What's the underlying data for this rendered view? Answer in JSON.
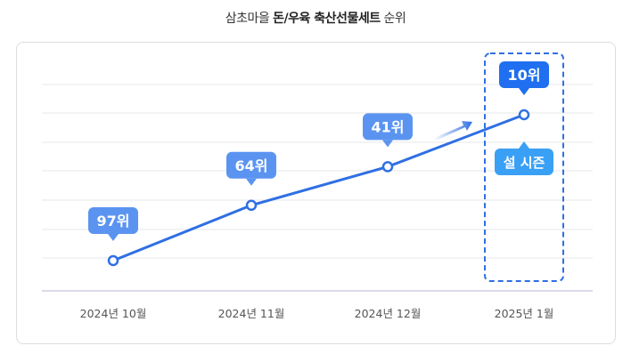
{
  "title": {
    "prefix": "삼초마을 ",
    "bold": "돈/우육 축산선물세트",
    "suffix": " 순위"
  },
  "chart_data": {
    "type": "line",
    "title": "삼초마을 돈/우육 축산선물세트 순위",
    "categories": [
      "2024년 10월",
      "2024년 11월",
      "2024년 12월",
      "2025년 1월"
    ],
    "values": [
      97,
      64,
      41,
      10
    ],
    "data_labels": [
      "97위",
      "64위",
      "41위",
      "10위"
    ],
    "y_inverted": true,
    "ylim": [
      10,
      97
    ],
    "grid": true,
    "annotation": "설 시즌",
    "highlight_category": "2025년 1월",
    "colors": {
      "line": "#2f6fe4",
      "label": "#5b94f0",
      "highlight_label": "#1f6ff0",
      "annotation": "#3aa0f5",
      "box": "#2f6fe4"
    }
  }
}
